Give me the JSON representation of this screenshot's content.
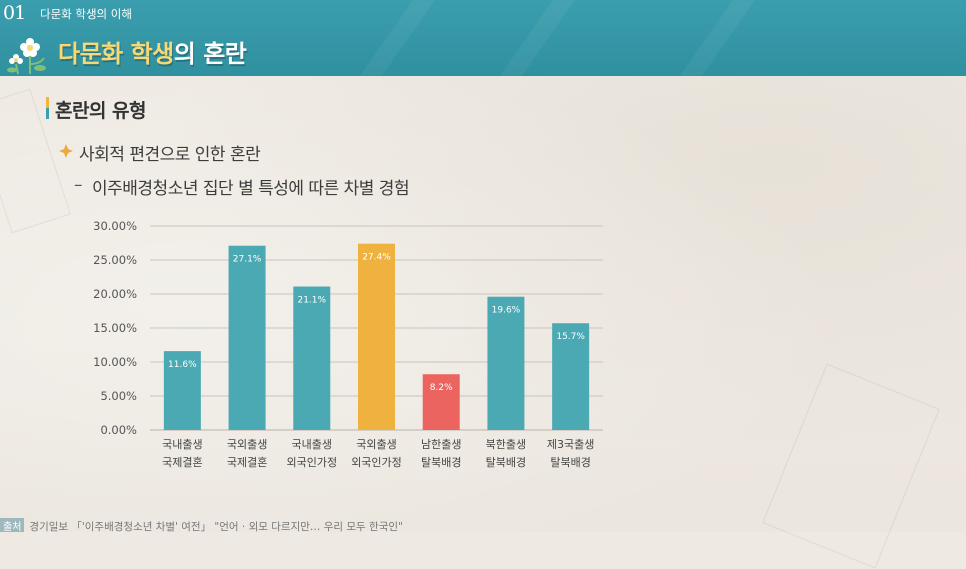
{
  "header": {
    "section_number": "01",
    "section_label": "다문화 학생의 이해",
    "title_part1": "다문화 학생",
    "title_part2": "의 혼란",
    "title_accent_color": "#f6d874",
    "band_color": "#3b9eae"
  },
  "main": {
    "heading": "혼란의 유형",
    "bullet": "사회적 편견으로 인한 혼란",
    "dash": "–",
    "subheading": "이주배경청소년 집단 별 특성에 따른 차별 경험"
  },
  "source": {
    "tag": "출처",
    "text": "경기일보 「'이주배경청소년 차별' 여전」 \"언어 · 외모 다르지만… 우리 모두 한국인\""
  },
  "chart_data": {
    "type": "bar",
    "categories": [
      [
        "국내출생",
        "국제결혼"
      ],
      [
        "국외출생",
        "국제결혼"
      ],
      [
        "국내출생",
        "외국인가정"
      ],
      [
        "국외출생",
        "외국인가정"
      ],
      [
        "남한출생",
        "탈북배경"
      ],
      [
        "북한출생",
        "탈북배경"
      ],
      [
        "제3국출생",
        "탈북배경"
      ]
    ],
    "values": [
      11.6,
      27.1,
      21.1,
      27.4,
      8.2,
      19.6,
      15.7
    ],
    "value_labels": [
      "11.6%",
      "27.1%",
      "21.1%",
      "27.4%",
      "8.2%",
      "19.6%",
      "15.7%"
    ],
    "bar_colors": [
      "#4ba9b4",
      "#4ba9b4",
      "#4ba9b4",
      "#f0b23f",
      "#ec6460",
      "#4ba9b4",
      "#4ba9b4"
    ],
    "y_ticks": [
      "0.00%",
      "5.00%",
      "10.00%",
      "15.00%",
      "20.00%",
      "25.00%",
      "30.00%"
    ],
    "ylim": [
      0,
      30
    ],
    "grid": true,
    "title": "",
    "xlabel": "",
    "ylabel": ""
  }
}
